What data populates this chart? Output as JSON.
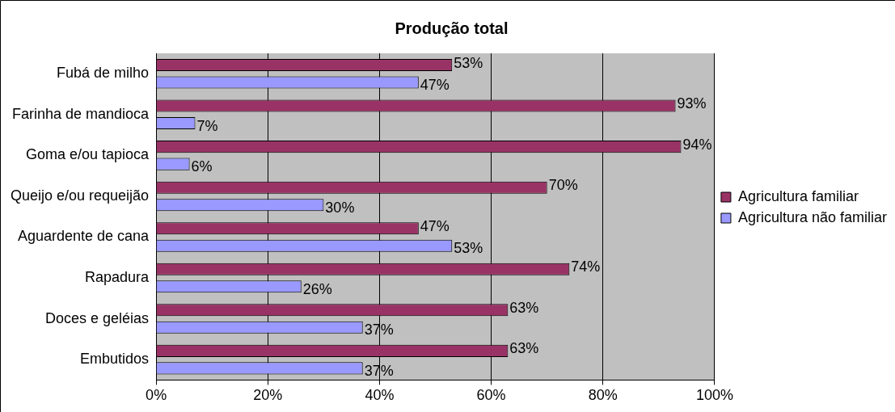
{
  "chart_data": {
    "type": "bar",
    "orientation": "horizontal",
    "title": "Produção total",
    "categories": [
      "Fubá de milho",
      "Farinha de mandioca",
      "Goma e/ou tapioca",
      "Queijo e/ou requeijão",
      "Aguardente de cana",
      "Rapadura",
      "Doces e geléias",
      "Embutidos"
    ],
    "series": [
      {
        "name": "Agricultura familiar",
        "color": "#993366",
        "values": [
          53,
          93,
          94,
          70,
          47,
          74,
          63,
          63
        ],
        "value_labels": [
          "53%",
          "93%",
          "94%",
          "70%",
          "47%",
          "74%",
          "63%",
          "63%"
        ]
      },
      {
        "name": "Agricultura não familiar",
        "color": "#9999ff",
        "values": [
          47,
          7,
          6,
          30,
          53,
          26,
          37,
          37
        ],
        "value_labels": [
          "47%",
          "7%",
          "6%",
          "30%",
          "53%",
          "26%",
          "37%",
          "37%"
        ]
      }
    ],
    "xlim": [
      0,
      100
    ],
    "xticks": [
      {
        "value": 0,
        "label": "0%"
      },
      {
        "value": 20,
        "label": "20%"
      },
      {
        "value": 40,
        "label": "40%"
      },
      {
        "value": 60,
        "label": "60%"
      },
      {
        "value": 80,
        "label": "80%"
      },
      {
        "value": 100,
        "label": "100%"
      }
    ],
    "grid": "x",
    "legend": "right"
  }
}
